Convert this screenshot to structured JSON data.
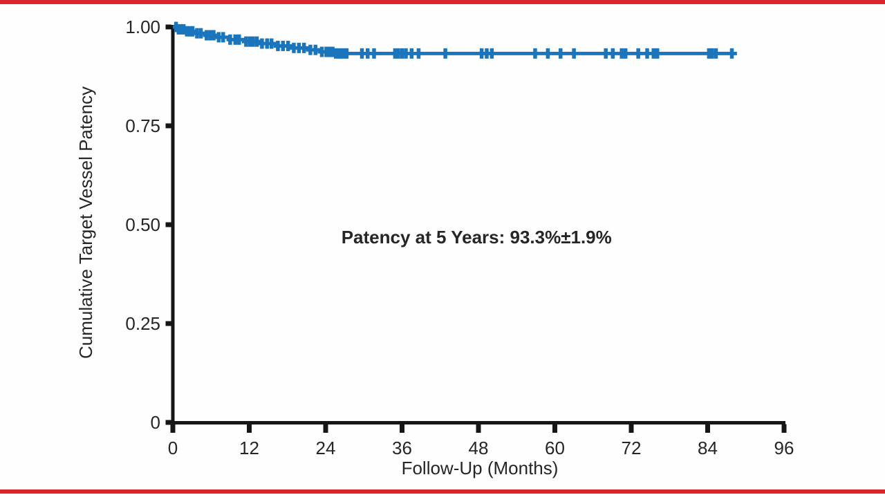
{
  "page": {
    "background": "#FEFEFE",
    "border_color": "#D9262B"
  },
  "chart_data": {
    "type": "line",
    "subtype": "kaplan-meier-step-curve",
    "title": "",
    "xlabel": "Follow-Up (Months)",
    "ylabel": "Cumulative Target Vessel Patency",
    "annotation": {
      "text": "Patency at 5 Years: 93.3%±1.9%",
      "x_months": 47.7,
      "y_value": 0.453
    },
    "xlim": [
      0,
      96
    ],
    "ylim": [
      0,
      1.0
    ],
    "xticks": [
      0,
      12,
      24,
      36,
      48,
      60,
      72,
      84,
      96
    ],
    "xtick_labels": [
      "0",
      "12",
      "24",
      "36",
      "48",
      "60",
      "72",
      "84",
      "96"
    ],
    "yticks": [
      0,
      0.25,
      0.5,
      0.75,
      1.0
    ],
    "ytick_labels": [
      "0",
      "0.25",
      "0.50",
      "0.75",
      "1.00"
    ],
    "grid": false,
    "legend": "none",
    "axis_color": "#161616",
    "text_color": "#262626",
    "series": [
      {
        "name": "Cumulative target vessel patency",
        "color": "#1B75BC",
        "end_month": 88.6,
        "steps": [
          [
            0,
            1.0
          ],
          [
            0.8,
            0.994
          ],
          [
            2.0,
            0.989
          ],
          [
            3.5,
            0.984
          ],
          [
            5.0,
            0.979
          ],
          [
            6.7,
            0.974
          ],
          [
            8.7,
            0.968
          ],
          [
            11.1,
            0.963
          ],
          [
            13.6,
            0.958
          ],
          [
            16.1,
            0.952
          ],
          [
            18.5,
            0.947
          ],
          [
            21.2,
            0.942
          ],
          [
            23.0,
            0.937
          ],
          [
            25.5,
            0.933
          ]
        ],
        "censor_marks": [
          0.5,
          0.9,
          1.3,
          1.7,
          2.2,
          2.7,
          3.1,
          3.8,
          4.4,
          5.3,
          5.9,
          6.4,
          7.2,
          7.9,
          9.0,
          9.8,
          10.4,
          11.5,
          12.1,
          12.6,
          13.2,
          14.0,
          14.8,
          15.5,
          16.5,
          17.3,
          18.1,
          19.0,
          19.8,
          20.6,
          21.6,
          22.4,
          23.4,
          24.1,
          24.6,
          25.1,
          25.6,
          26.0,
          26.4,
          26.9,
          27.3,
          29.7,
          30.6,
          31.6,
          34.9,
          35.4,
          36.0,
          36.6,
          37.5,
          38.6,
          42.8,
          48.5,
          49.3,
          50.1,
          56.9,
          58.9,
          60.9,
          63.0,
          68.0,
          69.1,
          70.5,
          71.1,
          73.1,
          74.5,
          75.5,
          76.1,
          84.2,
          84.7,
          85.3,
          87.8
        ]
      }
    ]
  }
}
